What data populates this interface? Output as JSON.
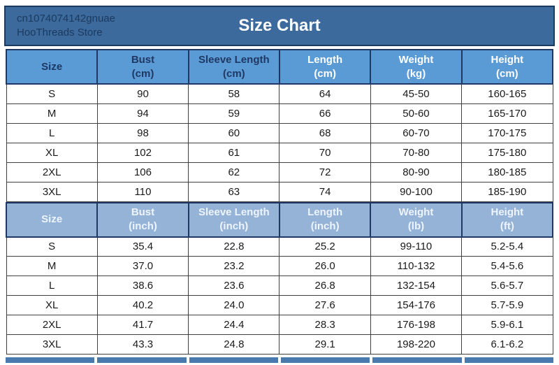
{
  "banner": {
    "store_line1": "cn1074074142gnuae",
    "store_line2": "HooThreads Store",
    "title": "Size Chart"
  },
  "chart_data": [
    {
      "type": "table",
      "title": "Size Chart (metric)",
      "columns": [
        {
          "label": "Size",
          "unit": ""
        },
        {
          "label": "Bust",
          "unit": "(cm)"
        },
        {
          "label": "Sleeve Length",
          "unit": "(cm)"
        },
        {
          "label": "Length",
          "unit": "(cm)"
        },
        {
          "label": "Weight",
          "unit": "(kg)"
        },
        {
          "label": "Height",
          "unit": "(cm)"
        }
      ],
      "rows": [
        [
          "S",
          "90",
          "58",
          "64",
          "45-50",
          "160-165"
        ],
        [
          "M",
          "94",
          "59",
          "66",
          "50-60",
          "165-170"
        ],
        [
          "L",
          "98",
          "60",
          "68",
          "60-70",
          "170-175"
        ],
        [
          "XL",
          "102",
          "61",
          "70",
          "70-80",
          "175-180"
        ],
        [
          "2XL",
          "106",
          "62",
          "72",
          "80-90",
          "180-185"
        ],
        [
          "3XL",
          "110",
          "63",
          "74",
          "90-100",
          "185-190"
        ]
      ]
    },
    {
      "type": "table",
      "title": "Size Chart (imperial)",
      "columns": [
        {
          "label": "Size",
          "unit": ""
        },
        {
          "label": "Bust",
          "unit": "(inch)"
        },
        {
          "label": "Sleeve Length",
          "unit": "(inch)"
        },
        {
          "label": "Length",
          "unit": "(inch)"
        },
        {
          "label": "Weight",
          "unit": "(lb)"
        },
        {
          "label": "Height",
          "unit": "(ft)"
        }
      ],
      "rows": [
        [
          "S",
          "35.4",
          "22.8",
          "25.2",
          "99-110",
          "5.2-5.4"
        ],
        [
          "M",
          "37.0",
          "23.2",
          "26.0",
          "110-132",
          "5.4-5.6"
        ],
        [
          "L",
          "38.6",
          "23.6",
          "26.8",
          "132-154",
          "5.6-5.7"
        ],
        [
          "XL",
          "40.2",
          "24.0",
          "27.6",
          "154-176",
          "5.7-5.9"
        ],
        [
          "2XL",
          "41.7",
          "24.4",
          "28.3",
          "176-198",
          "5.9-6.1"
        ],
        [
          "3XL",
          "43.3",
          "24.8",
          "29.1",
          "198-220",
          "6.1-6.2"
        ]
      ]
    }
  ],
  "colors": {
    "banner_bg": "#3c6a9d",
    "banner_border": "#1b3a60",
    "store_text": "#1c3a5e",
    "title_text": "#ffffff",
    "metric_header_bg": "#5b9bd5",
    "imperial_header_bg": "#95b3d7",
    "header_border": "#1f3864",
    "header_text_dark": "#1f3864",
    "header_text_light": "#ffffff",
    "cell_border": "#404040",
    "cell_text": "#1a1a1a",
    "cutoff_row_bg": "#4a79ae"
  }
}
